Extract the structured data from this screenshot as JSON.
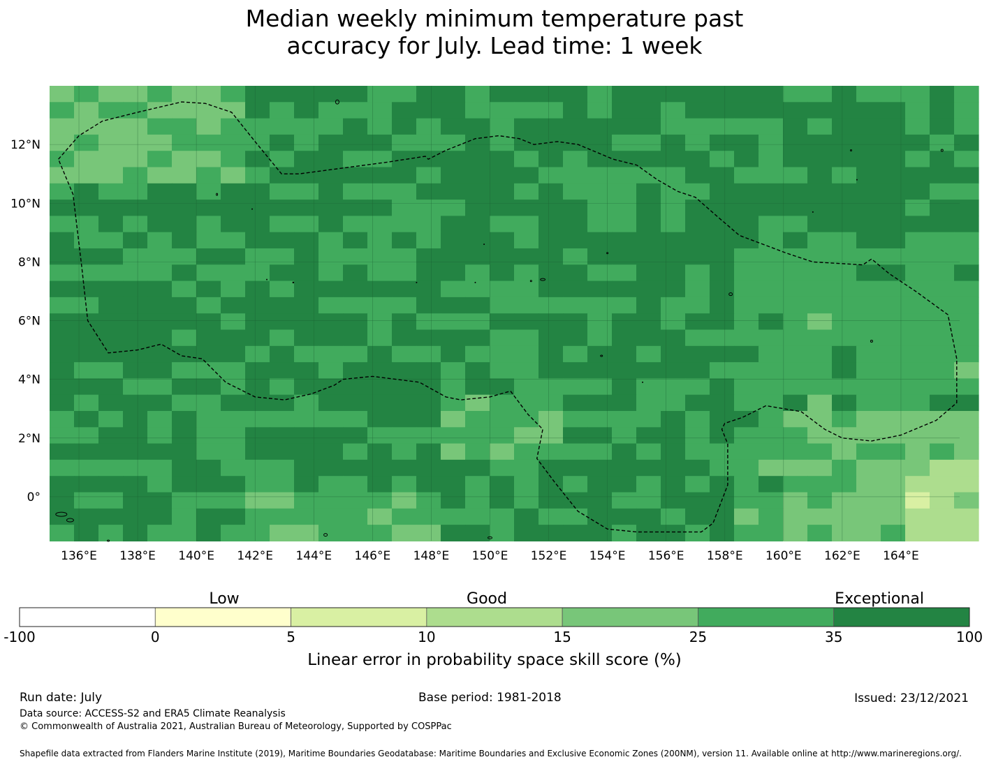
{
  "title_line1": "Median weekly minimum temperature past",
  "title_line2": "accuracy for July. Lead time: 1 week",
  "map": {
    "lon_range": [
      135,
      166
    ],
    "lat_range": [
      -1.5,
      14
    ],
    "lon_ticks": [
      "136°E",
      "138°E",
      "140°E",
      "142°E",
      "144°E",
      "146°E",
      "148°E",
      "150°E",
      "152°E",
      "154°E",
      "156°E",
      "158°E",
      "160°E",
      "162°E",
      "164°E"
    ],
    "lon_tick_values": [
      136,
      138,
      140,
      142,
      144,
      146,
      148,
      150,
      152,
      154,
      156,
      158,
      160,
      162,
      164
    ],
    "lat_ticks": [
      "12°N",
      "10°N",
      "8°N",
      "6°N",
      "4°N",
      "2°N",
      "0°"
    ],
    "lat_tick_values": [
      12,
      10,
      8,
      6,
      4,
      2,
      0
    ],
    "gridlines": true,
    "boundary": "dashed EEZ outline"
  },
  "colorbar": {
    "category_labels": [
      "Low",
      "Good",
      "Exceptional"
    ],
    "tick_labels": [
      "-100",
      "0",
      "5",
      "10",
      "15",
      "25",
      "35",
      "100"
    ],
    "colors": [
      "#ffffff",
      "#ffffcc",
      "#d9f0a3",
      "#addd8e",
      "#78c679",
      "#41ab5d",
      "#238443"
    ],
    "label": "Linear error in probability space skill score (%)"
  },
  "footer": {
    "run_date": "Run date: July",
    "base_period": "Base period: 1981-2018",
    "issued": "Issued: 23/12/2021",
    "data_source": "Data source: ACCESS-S2 and ERA5 Climate Reanalysis",
    "copyright": "© Commonwealth of Australia 2021, Australian Bureau of Meteorology, Supported by COSPPac",
    "shapefile": "Shapefile data extracted from Flanders Marine Institute (2019), Maritime Boundaries Geodatabase: Maritime Boundaries and Exclusive Economic Zones (200NM), version 11. Available online at http://www.marineregions.org/."
  }
}
